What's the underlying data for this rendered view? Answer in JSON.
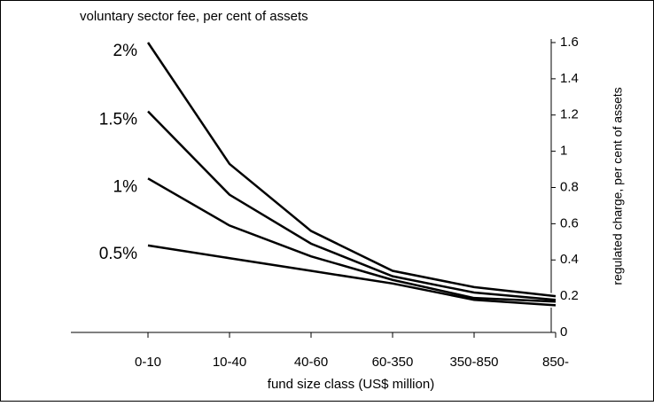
{
  "chart_data": {
    "type": "line",
    "title": "voluntary sector fee, per cent of assets",
    "x_label": "fund size class (US$ million)",
    "y2_label": "regulated charge, per cent of assets",
    "categories": [
      "0-10",
      "10-40",
      "40-60",
      "60-350",
      "350-850",
      "850-"
    ],
    "series": [
      {
        "name": "2%",
        "color": "#000000",
        "axis": "y2",
        "values": [
          1.6,
          0.93,
          0.56,
          0.34,
          0.25,
          0.2
        ]
      },
      {
        "name": "1.5%",
        "color": "#000000",
        "axis": "y2",
        "values": [
          1.22,
          0.76,
          0.49,
          0.31,
          0.22,
          0.18
        ]
      },
      {
        "name": "1%",
        "color": "#000000",
        "axis": "y2",
        "values": [
          0.85,
          0.59,
          0.42,
          0.29,
          0.19,
          0.17
        ]
      },
      {
        "name": "0.5%",
        "color": "#000000",
        "axis": "y2",
        "values": [
          0.48,
          0.41,
          0.34,
          0.27,
          0.18,
          0.15
        ]
      }
    ],
    "y2lim": [
      0,
      1.6
    ],
    "y2ticks": [
      0,
      0.2,
      0.4,
      0.6,
      0.8,
      1,
      1.2,
      1.4,
      1.6
    ]
  }
}
